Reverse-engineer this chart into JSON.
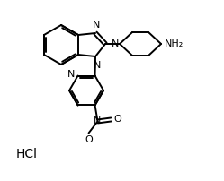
{
  "background_color": "#ffffff",
  "line_color": "#000000",
  "line_width": 1.4,
  "font_size_label": 8,
  "hcl_text": "HCl",
  "nh2_text": "NH₂",
  "n_text": "N",
  "no2_n_text": "N",
  "o_text": "O"
}
